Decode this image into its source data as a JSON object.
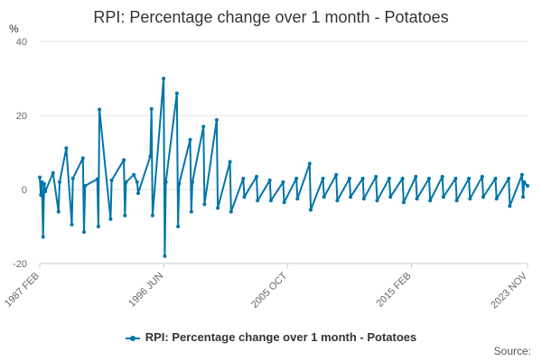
{
  "title": "RPI: Percentage change over 1 month - Potatoes",
  "chart_data": {
    "type": "line",
    "title": "RPI: Percentage change over 1 month - Potatoes",
    "ylabel": "%",
    "xlabel": "",
    "ylim": [
      -20,
      40
    ],
    "y_ticks": [
      -20,
      0,
      20,
      40
    ],
    "x_tick_labels": [
      "1987 FEB",
      "1996 JUN",
      "2005 OCT",
      "2015 FEB",
      "2023 NOV"
    ],
    "x_start": "1987 FEB",
    "x_end": "2023 NOV",
    "grid": "horizontal",
    "legend_position": "bottom",
    "series_color": "#0075a9",
    "series": [
      {
        "name": "RPI: Percentage change over 1 month - Potatoes",
        "x": [
          "1987 FEB",
          "1987 MAR",
          "1987 APR",
          "1987 MAY",
          "1987 JUN",
          "1987 JUL",
          "1988 FEB",
          "1988 JUL",
          "1988 AUG",
          "1989 FEB",
          "1989 JUL",
          "1989 AUG",
          "1990 MAY",
          "1990 JUN",
          "1990 JUL",
          "1991 JUN",
          "1991 JUL",
          "1991 AUG",
          "1992 JUN",
          "1992 JUL",
          "1993 JUN",
          "1993 JUL",
          "1993 AUG",
          "1994 MAR",
          "1994 JUN",
          "1994 JUL",
          "1995 JUN",
          "1995 JUL",
          "1995 AUG",
          "1996 JUN",
          "1996 JUL",
          "1996 AUG",
          "1997 JUN",
          "1997 JUL",
          "1997 AUG",
          "1998 JUN",
          "1998 JUL",
          "1998 AUG",
          "1999 JUN",
          "1999 JUL",
          "2000 JUN",
          "2000 JUL",
          "2001 JUN",
          "2001 JUL",
          "2002 JUN",
          "2002 JUL",
          "2003 JUN",
          "2003 JUL",
          "2004 JUN",
          "2004 JUL",
          "2005 JUN",
          "2005 JUL",
          "2006 JUN",
          "2006 JUL",
          "2007 JUN",
          "2007 JUL",
          "2008 JUN",
          "2008 JUL",
          "2009 JUN",
          "2009 JUL",
          "2010 JUN",
          "2010 JUL",
          "2011 JUN",
          "2011 JUL",
          "2012 JUN",
          "2012 JUL",
          "2013 JUN",
          "2013 JUL",
          "2014 JUN",
          "2014 JUL",
          "2015 JUN",
          "2015 JUL",
          "2016 JUN",
          "2016 JUL",
          "2017 JUN",
          "2017 JUL",
          "2018 JUN",
          "2018 JUL",
          "2019 JUN",
          "2019 JUL",
          "2020 JUN",
          "2020 JUL",
          "2021 JUN",
          "2021 JUL",
          "2022 JUN",
          "2022 JUL",
          "2023 JUN",
          "2023 JUL",
          "2023 AUG",
          "2023 NOV"
        ],
        "y": [
          3.3,
          -1.5,
          2.0,
          -12.8,
          1.5,
          -0.5,
          4.5,
          -6.0,
          2.0,
          11.2,
          -9.5,
          3.0,
          8.5,
          -11.5,
          1.0,
          2.8,
          -10.0,
          21.6,
          -8.0,
          2.5,
          8.0,
          -7.0,
          2.0,
          4.0,
          2.0,
          -1.0,
          9.0,
          21.8,
          -7.0,
          30.0,
          -18.0,
          2.0,
          26.0,
          -10.0,
          1.5,
          13.5,
          -6.0,
          2.0,
          17.0,
          -4.0,
          18.8,
          -5.0,
          7.5,
          -6.0,
          3.0,
          -2.0,
          3.5,
          -3.0,
          2.5,
          -3.0,
          2.0,
          -3.5,
          3.0,
          -2.5,
          7.0,
          -5.5,
          3.0,
          -2.0,
          4.0,
          -3.0,
          3.0,
          -2.0,
          3.0,
          -2.5,
          3.5,
          -3.0,
          3.0,
          -2.0,
          3.0,
          -3.5,
          3.5,
          -2.5,
          3.0,
          -3.0,
          3.5,
          -2.0,
          3.0,
          -3.0,
          3.0,
          -2.5,
          3.5,
          -2.0,
          3.0,
          -2.5,
          3.0,
          -4.5,
          4.0,
          -2.0,
          2.0,
          1.0
        ]
      }
    ]
  },
  "legend": {
    "label": "RPI: Percentage change over 1 month - Potatoes"
  },
  "source_label": "Source:"
}
